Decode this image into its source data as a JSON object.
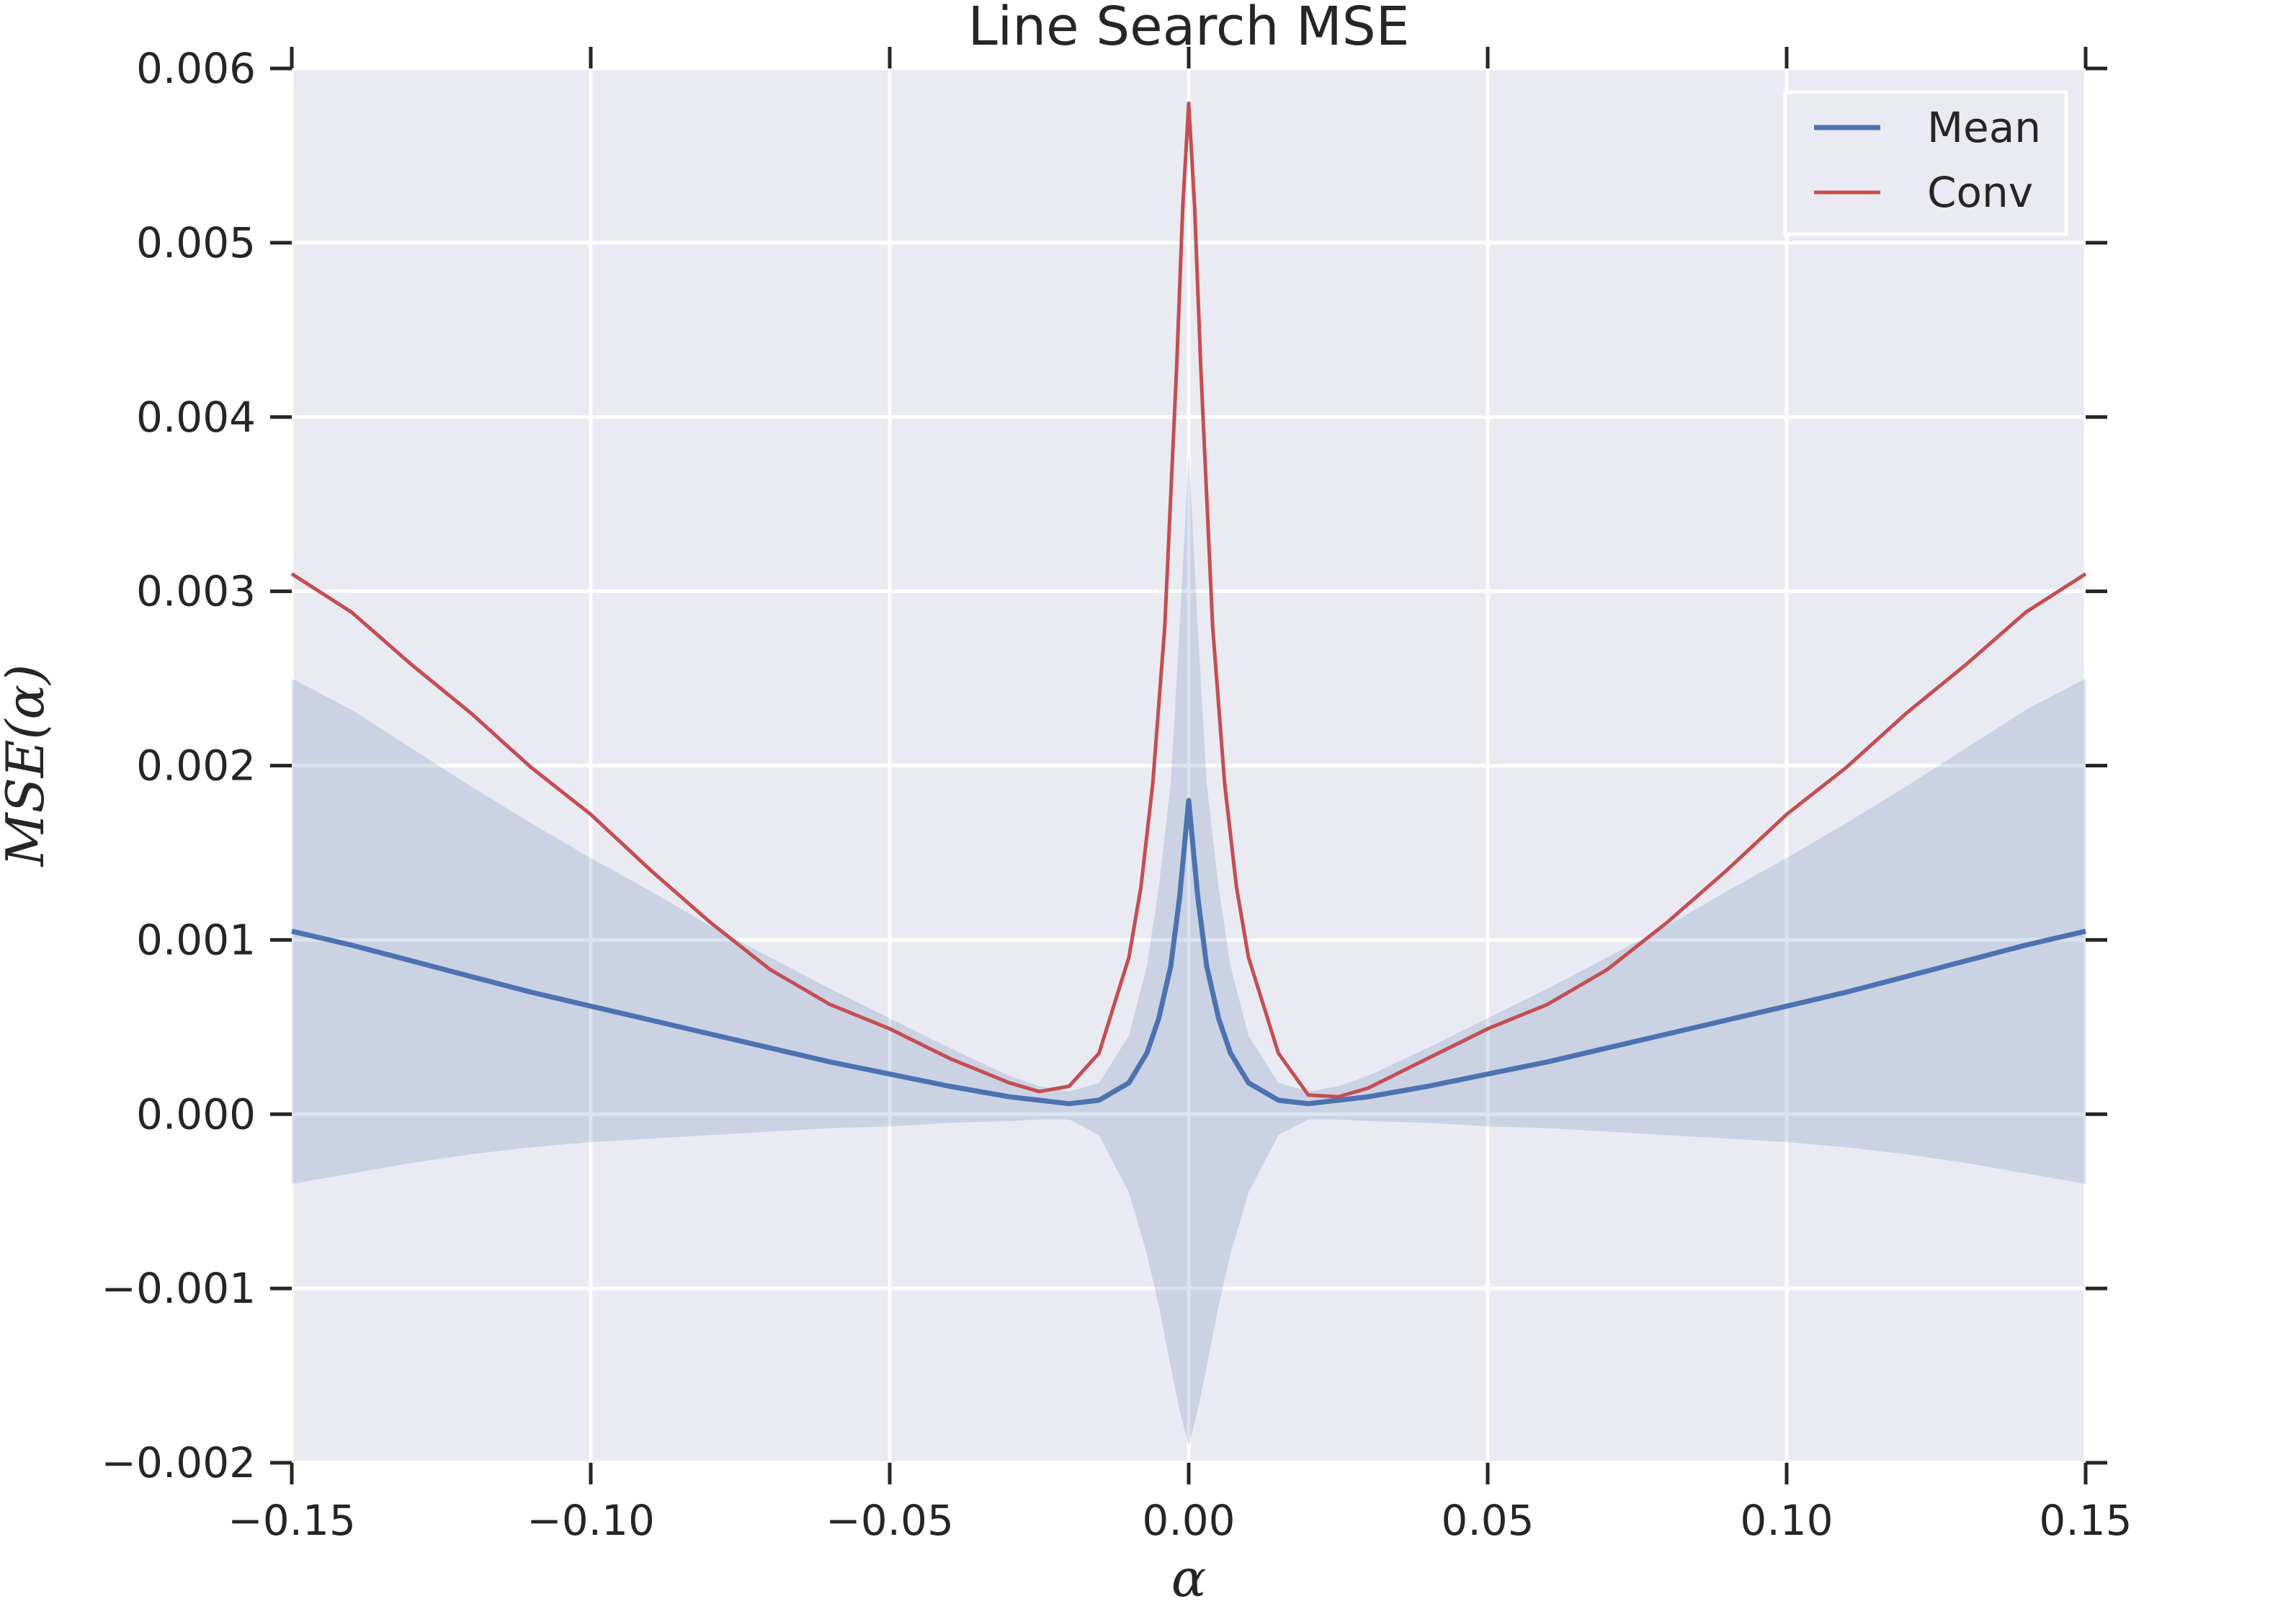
{
  "chart_data": {
    "type": "line",
    "title": "Line Search MSE",
    "xlabel": "α",
    "ylabel": "MSE(α)",
    "xlim": [
      -0.15,
      0.15
    ],
    "ylim": [
      -0.002,
      0.006
    ],
    "grid": true,
    "legend_position": "top-right",
    "x_ticks": [
      -0.15,
      -0.1,
      -0.05,
      0.0,
      0.05,
      0.1,
      0.15
    ],
    "x_tick_labels": [
      "−0.15",
      "−0.10",
      "−0.05",
      "0.00",
      "0.05",
      "0.10",
      "0.15"
    ],
    "y_ticks": [
      -0.002,
      -0.001,
      0.0,
      0.001,
      0.002,
      0.003,
      0.004,
      0.005,
      0.006
    ],
    "y_tick_labels": [
      "−0.002",
      "−0.001",
      "0.000",
      "0.001",
      "0.002",
      "0.003",
      "0.004",
      "0.005",
      "0.006"
    ],
    "series": [
      {
        "name": "Mean",
        "color": "#4c72b0",
        "x": [
          -0.15,
          -0.14,
          -0.13,
          -0.12,
          -0.11,
          -0.1,
          -0.09,
          -0.08,
          -0.07,
          -0.06,
          -0.05,
          -0.04,
          -0.03,
          -0.025,
          -0.02,
          -0.015,
          -0.01,
          -0.007,
          -0.005,
          -0.003,
          -0.0015,
          0.0,
          0.0015,
          0.003,
          0.005,
          0.007,
          0.01,
          0.015,
          0.02,
          0.025,
          0.03,
          0.04,
          0.05,
          0.06,
          0.07,
          0.08,
          0.09,
          0.1,
          0.11,
          0.12,
          0.13,
          0.14,
          0.15
        ],
        "y": [
          0.00105,
          0.00097,
          0.00088,
          0.00079,
          0.0007,
          0.00062,
          0.00054,
          0.00046,
          0.00038,
          0.0003,
          0.00023,
          0.00016,
          0.0001,
          8e-05,
          6e-05,
          8e-05,
          0.00018,
          0.00035,
          0.00055,
          0.00085,
          0.00125,
          0.0018,
          0.00125,
          0.00085,
          0.00055,
          0.00035,
          0.00018,
          8e-05,
          6e-05,
          8e-05,
          0.0001,
          0.00016,
          0.00023,
          0.0003,
          0.00038,
          0.00046,
          0.00054,
          0.00062,
          0.0007,
          0.00079,
          0.00088,
          0.00097,
          0.00105
        ]
      },
      {
        "name": "Conv",
        "color": "#c44e52",
        "x": [
          -0.15,
          -0.14,
          -0.13,
          -0.12,
          -0.11,
          -0.1,
          -0.09,
          -0.08,
          -0.07,
          -0.06,
          -0.05,
          -0.04,
          -0.03,
          -0.025,
          -0.02,
          -0.015,
          -0.01,
          -0.008,
          -0.006,
          -0.004,
          -0.002,
          -0.001,
          0.0,
          0.001,
          0.002,
          0.004,
          0.006,
          0.008,
          0.01,
          0.015,
          0.02,
          0.025,
          0.03,
          0.04,
          0.05,
          0.06,
          0.07,
          0.08,
          0.09,
          0.1,
          0.11,
          0.12,
          0.13,
          0.14,
          0.15
        ],
        "y": [
          0.0031,
          0.00288,
          0.00258,
          0.0023,
          0.00199,
          0.00172,
          0.0014,
          0.0011,
          0.00083,
          0.00063,
          0.00049,
          0.00032,
          0.00018,
          0.00013,
          0.00016,
          0.00035,
          0.0009,
          0.0013,
          0.0019,
          0.0028,
          0.0043,
          0.0052,
          0.0058,
          0.0052,
          0.0043,
          0.0028,
          0.0019,
          0.0013,
          0.0009,
          0.00035,
          0.00011,
          0.0001,
          0.00015,
          0.00032,
          0.00049,
          0.00063,
          0.00083,
          0.0011,
          0.0014,
          0.00172,
          0.00199,
          0.0023,
          0.00258,
          0.00288,
          0.0031
        ]
      }
    ],
    "band": {
      "x": [
        -0.15,
        -0.14,
        -0.13,
        -0.12,
        -0.11,
        -0.1,
        -0.09,
        -0.08,
        -0.07,
        -0.06,
        -0.05,
        -0.04,
        -0.03,
        -0.025,
        -0.02,
        -0.015,
        -0.01,
        -0.007,
        -0.005,
        -0.003,
        -0.0015,
        0.0,
        0.0015,
        0.003,
        0.005,
        0.007,
        0.01,
        0.015,
        0.02,
        0.025,
        0.03,
        0.04,
        0.05,
        0.06,
        0.07,
        0.08,
        0.09,
        0.1,
        0.11,
        0.12,
        0.13,
        0.14,
        0.15
      ],
      "upper": [
        0.0025,
        0.00232,
        0.0021,
        0.00188,
        0.00167,
        0.00147,
        0.00128,
        0.00108,
        0.0009,
        0.00072,
        0.00055,
        0.00038,
        0.00022,
        0.00016,
        0.00013,
        0.00018,
        0.00045,
        0.00085,
        0.0013,
        0.0019,
        0.0028,
        0.0038,
        0.0028,
        0.0019,
        0.0013,
        0.00085,
        0.00045,
        0.00018,
        0.00013,
        0.00016,
        0.00022,
        0.00038,
        0.00055,
        0.00072,
        0.0009,
        0.00108,
        0.00128,
        0.00147,
        0.00167,
        0.00188,
        0.0021,
        0.00232,
        0.0025
      ],
      "lower": [
        -0.0004,
        -0.00034,
        -0.00028,
        -0.00023,
        -0.00019,
        -0.00016,
        -0.00014,
        -0.00012,
        -0.0001,
        -8e-05,
        -7e-05,
        -5e-05,
        -4e-05,
        -3e-05,
        -3e-05,
        -0.00012,
        -0.00045,
        -0.0008,
        -0.0011,
        -0.00145,
        -0.0017,
        -0.0019,
        -0.0017,
        -0.00145,
        -0.0011,
        -0.0008,
        -0.00045,
        -0.00012,
        -3e-05,
        -3e-05,
        -4e-05,
        -5e-05,
        -7e-05,
        -8e-05,
        -0.0001,
        -0.00012,
        -0.00014,
        -0.00016,
        -0.00019,
        -0.00023,
        -0.00028,
        -0.00034,
        -0.0004
      ],
      "color": "#4c72b0"
    }
  }
}
